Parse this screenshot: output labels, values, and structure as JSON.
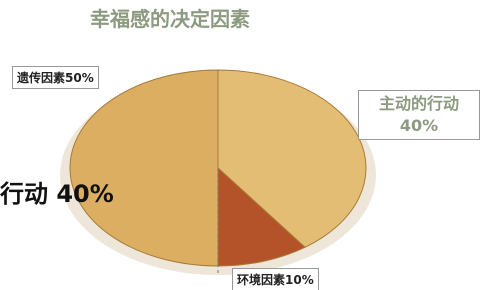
{
  "chart_data": {
    "type": "pie",
    "title": "幸福感的决定因素",
    "categories": [
      "遗传因素",
      "主动的行动",
      "环境因素"
    ],
    "values": [
      50,
      40,
      10
    ],
    "value_labels": [
      "50%",
      "40%",
      "10%"
    ],
    "colors": [
      "#dcae62",
      "#e4bd74",
      "#b4532a"
    ],
    "annotation": "行动 40%"
  }
}
